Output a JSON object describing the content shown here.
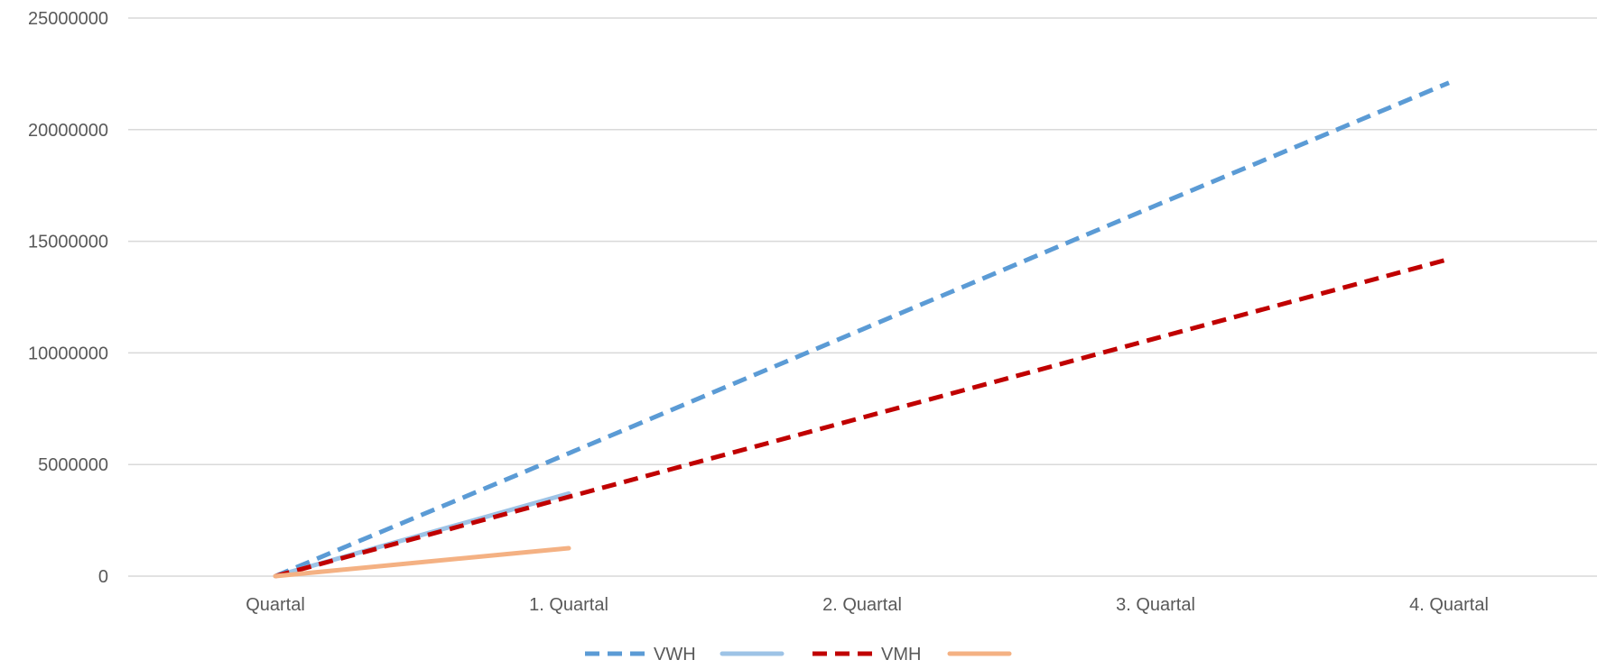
{
  "chart_data": {
    "type": "line",
    "title": "",
    "xlabel": "",
    "ylabel": "",
    "categories": [
      "Quartal",
      "1. Quartal",
      "2. Quartal",
      "3. Quartal",
      "4. Quartal"
    ],
    "ylim": [
      0,
      25000000
    ],
    "yticks": [
      0,
      5000000,
      10000000,
      15000000,
      20000000,
      25000000
    ],
    "ytick_labels": [
      "0",
      "5000000",
      "10000000",
      "15000000",
      "20000000",
      "25000000"
    ],
    "grid": true,
    "legend_position": "bottom",
    "series": [
      {
        "name": "VWH",
        "values": [
          0,
          5500000,
          11050000,
          16600000,
          22100000
        ],
        "color": "#5B9BD5",
        "style": "dashed"
      },
      {
        "name": "",
        "values": [
          0,
          3700000,
          null,
          null,
          null
        ],
        "color": "#9DC3E6",
        "style": "solid"
      },
      {
        "name": "VMH",
        "values": [
          0,
          3550000,
          7100000,
          10650000,
          14200000
        ],
        "color": "#C00000",
        "style": "dashed"
      },
      {
        "name": "",
        "values": [
          0,
          1250000,
          null,
          null,
          null
        ],
        "color": "#F4B183",
        "style": "solid"
      }
    ]
  }
}
